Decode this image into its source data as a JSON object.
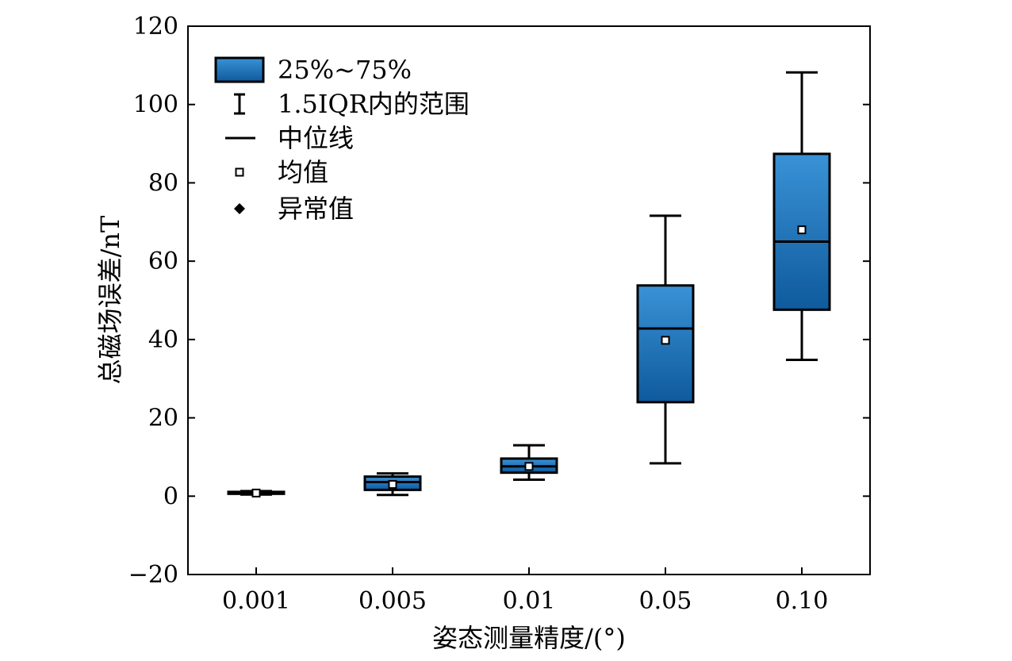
{
  "chart_data": {
    "type": "box",
    "xlabel": "姿态测量精度/(°)",
    "ylabel": "总磁场误差/nT",
    "ylim": [
      -20,
      120
    ],
    "yticks": [
      -20,
      0,
      20,
      40,
      60,
      80,
      100,
      120
    ],
    "categories": [
      "0.001",
      "0.005",
      "0.01",
      "0.05",
      "0.10"
    ],
    "boxes": [
      {
        "category": "0.001",
        "whisker_low": 0.4,
        "q1": 0.6,
        "median": 0.9,
        "q3": 1.1,
        "whisker_high": 1.3,
        "mean": 0.8
      },
      {
        "category": "0.005",
        "whisker_low": 0.3,
        "q1": 1.6,
        "median": 3.6,
        "q3": 5.0,
        "whisker_high": 5.8,
        "mean": 3.0
      },
      {
        "category": "0.01",
        "whisker_low": 4.2,
        "q1": 6.0,
        "median": 7.6,
        "q3": 9.6,
        "whisker_high": 13.0,
        "mean": 7.6
      },
      {
        "category": "0.05",
        "whisker_low": 8.4,
        "q1": 24.0,
        "median": 42.8,
        "q3": 53.8,
        "whisker_high": 71.6,
        "mean": 39.8
      },
      {
        "category": "0.10",
        "whisker_low": 34.8,
        "q1": 47.6,
        "median": 65.0,
        "q3": 87.4,
        "whisker_high": 108.2,
        "mean": 68.0
      }
    ],
    "box_color": "#1f78c1",
    "grid": false,
    "legend_position": "top-left"
  },
  "legend": {
    "items": [
      {
        "label": "25%~75%",
        "symbol": "box"
      },
      {
        "label": "1.5IQR内的范围",
        "symbol": "whisker"
      },
      {
        "label": "中位线",
        "symbol": "line"
      },
      {
        "label": "均值",
        "symbol": "square"
      },
      {
        "label": "异常值",
        "symbol": "diamond"
      }
    ]
  }
}
